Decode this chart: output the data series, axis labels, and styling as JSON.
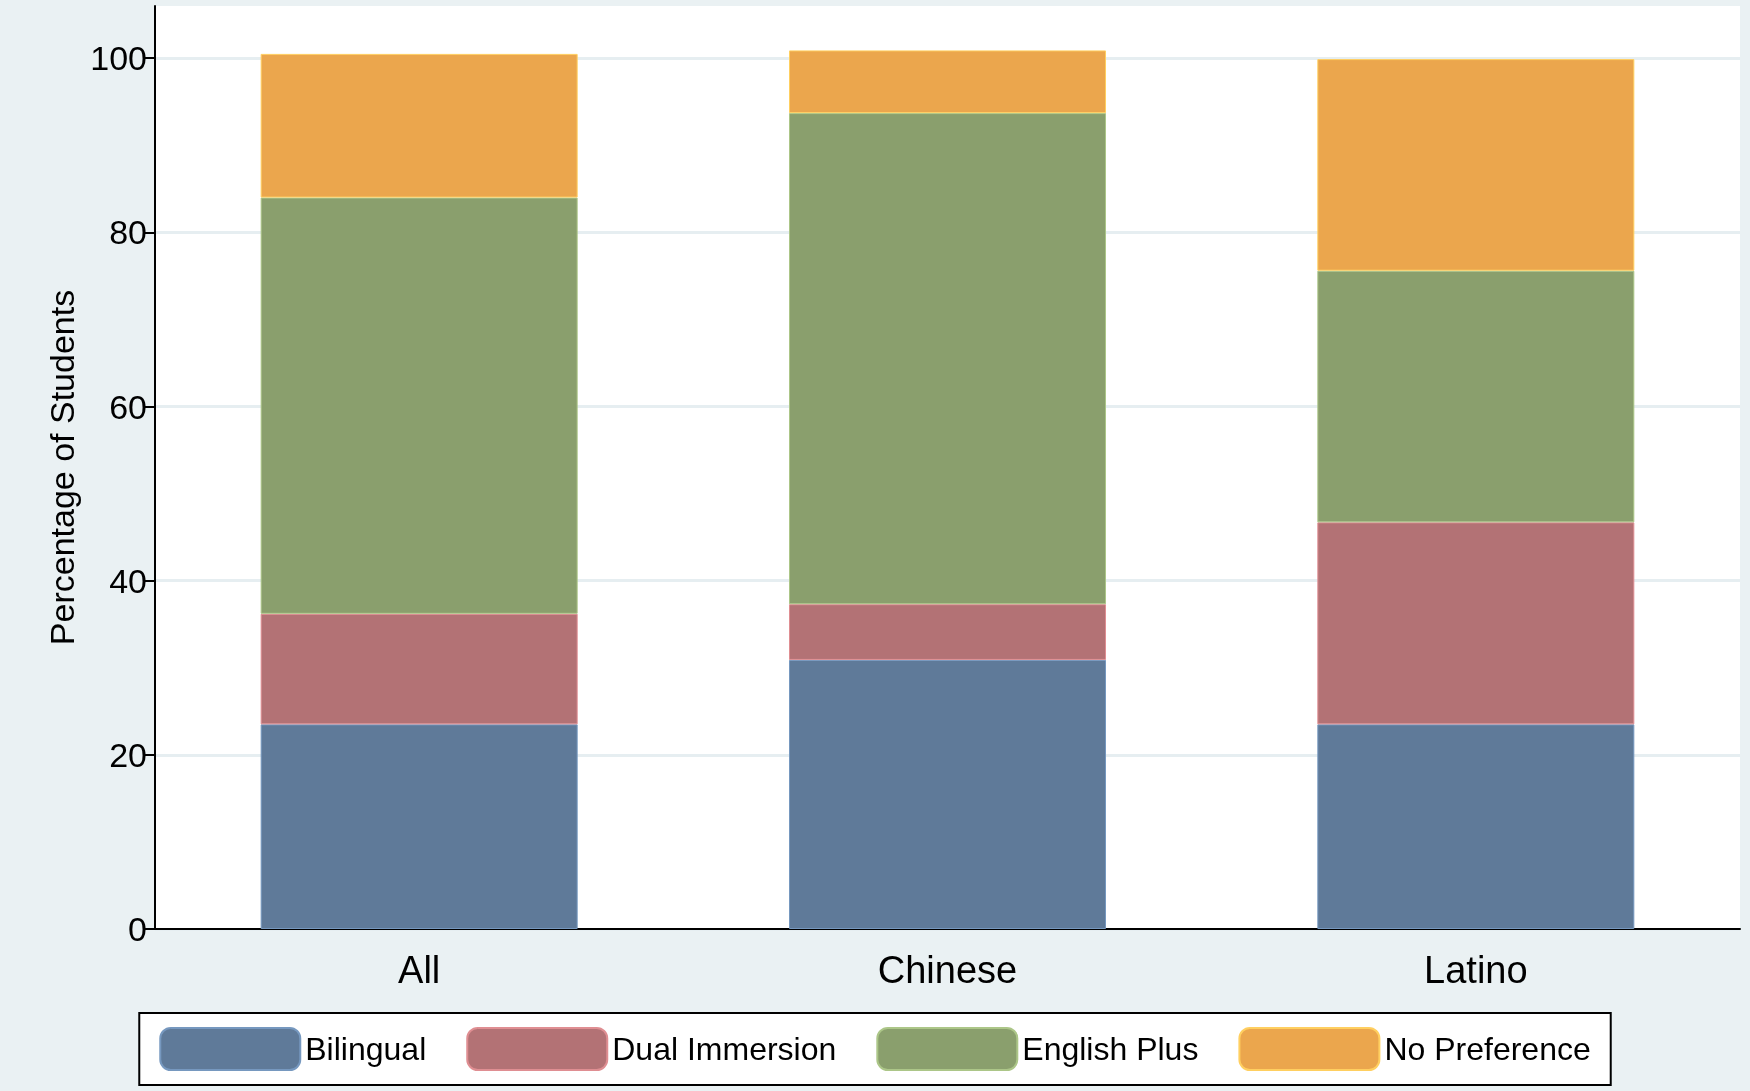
{
  "chart_data": {
    "type": "bar",
    "ylabel": "Percentage of Students",
    "categories": [
      "All",
      "Chinese",
      "Latino"
    ],
    "stacked": true,
    "series": [
      {
        "name": "Bilingual",
        "color": "#5f7a99",
        "values": [
          23.5,
          30.9,
          23.5
        ]
      },
      {
        "name": "Dual Immersion",
        "color": "#b37275",
        "values": [
          12.7,
          6.4,
          23.2
        ]
      },
      {
        "name": "English Plus",
        "color": "#8a9f6d",
        "values": [
          47.8,
          56.4,
          28.9
        ]
      },
      {
        "name": "No Preference",
        "color": "#eba64d",
        "values": [
          16.5,
          7.2,
          24.3
        ]
      }
    ],
    "ylim": [
      0,
      106
    ],
    "yticks": [
      0,
      20,
      40,
      60,
      80,
      100
    ],
    "grid": "y",
    "legend": "bottom"
  }
}
